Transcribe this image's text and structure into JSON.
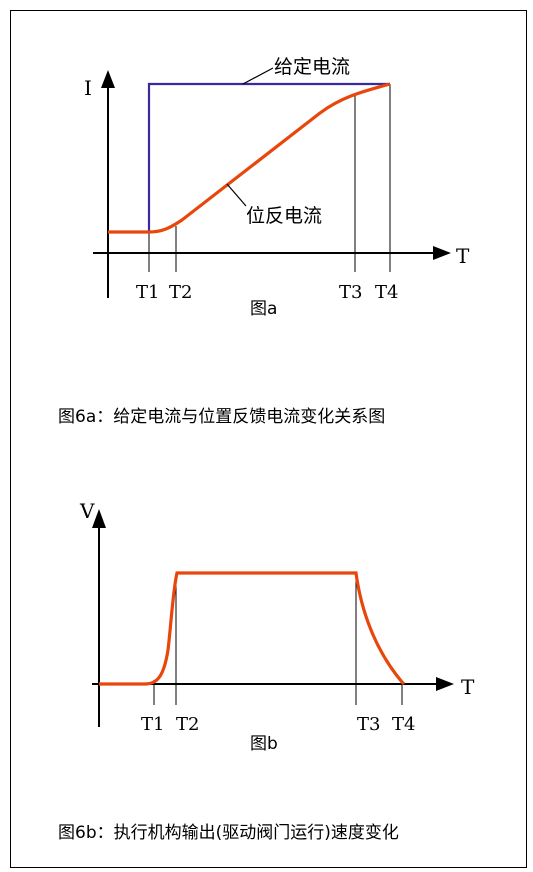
{
  "diagram_a": {
    "y_axis_label": "I",
    "x_axis_label": "T",
    "setpoint_label": "给定电流",
    "feedback_label": "位反电流",
    "ticks": [
      "T1",
      "T2",
      "T3",
      "T4"
    ],
    "sub_label": "图a",
    "setpoint_color": "#3a2aa0",
    "feedback_color": "#e8470c"
  },
  "caption_a": "图6a：给定电流与位置反馈电流变化关系图",
  "diagram_b": {
    "y_axis_label": "V",
    "x_axis_label": "T",
    "ticks": [
      "T1",
      "T2",
      "T3",
      "T4"
    ],
    "sub_label": "图b",
    "curve_color": "#e8470c"
  },
  "caption_b": "图6b：执行机构输出(驱动阀门运行)速度变化"
}
